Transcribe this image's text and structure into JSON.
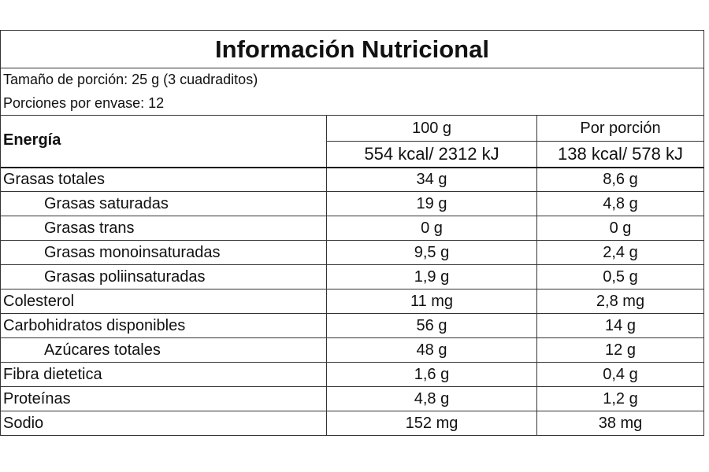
{
  "header": {
    "title": "Información Nutricional"
  },
  "serving": {
    "size": "Tamaño de porción: 25 g (3 cuadraditos)",
    "count": "Porciones por envase: 12"
  },
  "energy": {
    "label": "Energía",
    "columns": [
      "100 g",
      "Por porción"
    ],
    "values": [
      "554 kcal/ 2312 kJ",
      "138 kcal/ 578 kJ"
    ]
  },
  "rows": [
    {
      "label": "Grasas totales",
      "values": [
        "34 g",
        "8,6 g"
      ],
      "children": [
        {
          "label": "Grasas saturadas",
          "values": [
            "19 g",
            "4,8 g"
          ]
        },
        {
          "label": "Grasas trans",
          "values": [
            "0 g",
            "0 g"
          ]
        },
        {
          "label": "Grasas monoinsaturadas",
          "values": [
            "9,5 g",
            "2,4 g"
          ]
        },
        {
          "label": "Grasas poliinsaturadas",
          "values": [
            "1,9 g",
            "0,5 g"
          ]
        }
      ]
    },
    {
      "label": "Colesterol",
      "values": [
        "11 mg",
        "2,8 mg"
      ]
    },
    {
      "label": "Carbohidratos disponibles",
      "values": [
        "56 g",
        "14 g"
      ],
      "children": [
        {
          "label": "Azúcares totales",
          "values": [
            "48 g",
            "12 g"
          ]
        }
      ]
    },
    {
      "label": "Fibra dietetica",
      "values": [
        "1,6 g",
        "0,4 g"
      ]
    },
    {
      "label": "Proteínas",
      "values": [
        "4,8 g",
        "1,2 g"
      ]
    },
    {
      "label": "Sodio",
      "values": [
        "152 mg",
        "38 mg"
      ]
    }
  ]
}
